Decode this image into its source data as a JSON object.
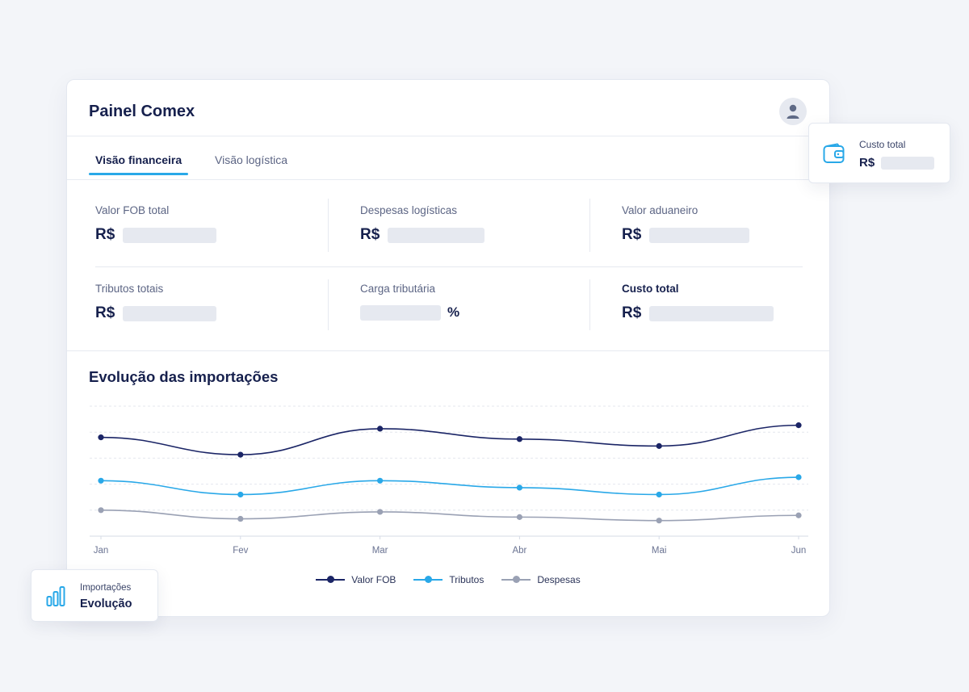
{
  "app": {
    "title": "Painel Comex"
  },
  "tabs": [
    {
      "label": "Visão financeira",
      "active": true
    },
    {
      "label": "Visão logística",
      "active": false
    }
  ],
  "metrics": [
    {
      "label": "Valor FOB total",
      "prefix": "R$",
      "suffix": ""
    },
    {
      "label": "Despesas logísticas",
      "prefix": "R$",
      "suffix": ""
    },
    {
      "label": "Valor aduaneiro",
      "prefix": "R$",
      "suffix": ""
    },
    {
      "label": "Tributos totais",
      "prefix": "R$",
      "suffix": ""
    },
    {
      "label": "Carga tributária",
      "prefix": "",
      "suffix": "%"
    },
    {
      "label": "Custo total",
      "prefix": "R$",
      "suffix": ""
    }
  ],
  "chart_section": {
    "title": "Evolução das importações"
  },
  "chart_data": {
    "type": "line",
    "title": "Evolução das importações",
    "categories": [
      "Jan",
      "Fev",
      "Mar",
      "Abr",
      "Mai",
      "Jun"
    ],
    "grid": true,
    "legend": "bottom-center",
    "y_axis_labels": false,
    "series": [
      {
        "name": "Valor FOB",
        "color": "#1b2566",
        "values": [
          77,
          67,
          82,
          76,
          72,
          84
        ]
      },
      {
        "name": "Tributos",
        "color": "#29a8e8",
        "values": [
          52,
          44,
          52,
          48,
          44,
          54
        ]
      },
      {
        "name": "Despesas",
        "color": "#9aa1b4",
        "values": [
          35,
          30,
          34,
          31,
          29,
          32
        ]
      }
    ]
  },
  "floating": {
    "total_cost": {
      "label": "Custo total",
      "prefix": "R$",
      "icon": "wallet-icon"
    },
    "imports": {
      "label": "Importações",
      "value": "Evolução",
      "icon": "bar-chart-icon"
    }
  },
  "colors": {
    "accent": "#29a8e8",
    "navy": "#1b2566",
    "gray": "#9aa1b4"
  }
}
